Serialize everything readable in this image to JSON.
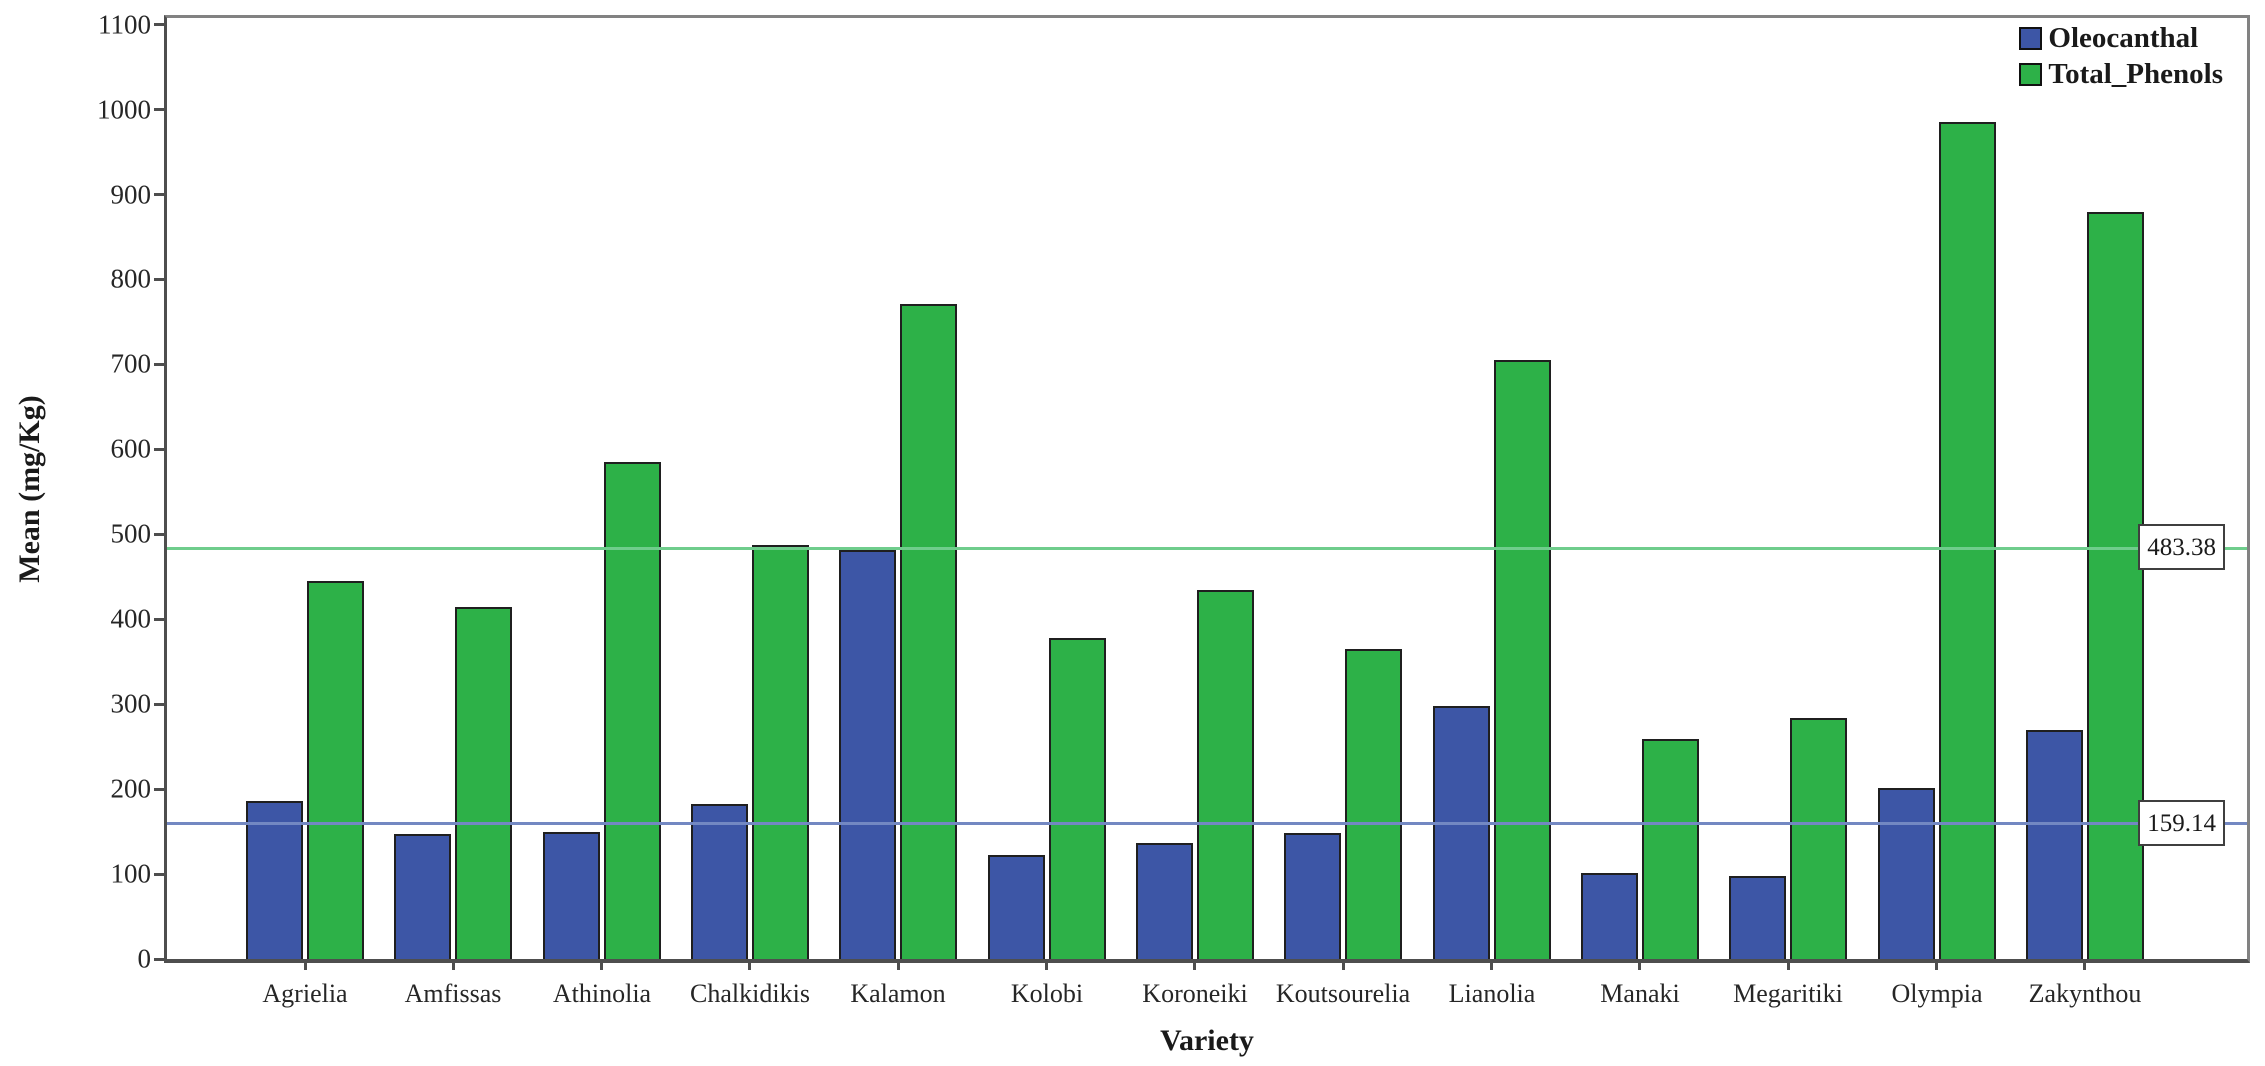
{
  "chart_data": {
    "type": "bar",
    "title": "",
    "xlabel": "Variety",
    "ylabel": "Mean (mg/Kg)",
    "ylim": [
      0,
      1100
    ],
    "ytick_step": 100,
    "yticks": [
      0,
      100,
      200,
      300,
      400,
      500,
      600,
      700,
      800,
      900,
      1000,
      1100
    ],
    "grid": false,
    "legend_position": "top-right-inside",
    "categories": [
      "Agrielia",
      "Amfissas",
      "Athinolia",
      "Chalkidikis",
      "Kalamon",
      "Kolobi",
      "Koroneiki",
      "Koutsourelia",
      "Lianolia",
      "Manaki",
      "Megaritiki",
      "Olympia",
      "Zakynthou"
    ],
    "series": [
      {
        "name": "Oleocanthal",
        "color": "#3d56a6",
        "values": [
          186,
          147,
          150,
          183,
          482,
          123,
          136,
          148,
          298,
          101,
          98,
          201,
          270
        ]
      },
      {
        "name": "Total_Phenols",
        "color": "#2db148",
        "values": [
          445,
          415,
          585,
          488,
          771,
          378,
          434,
          365,
          705,
          259,
          284,
          986,
          880
        ]
      }
    ],
    "reference_lines": [
      {
        "label": "483.38",
        "value": 483.38,
        "color": "#6fcd8c",
        "series": "Total_Phenols"
      },
      {
        "label": "159.14",
        "value": 159.14,
        "color": "#7388c2",
        "series": "Oleocanthal"
      }
    ]
  }
}
